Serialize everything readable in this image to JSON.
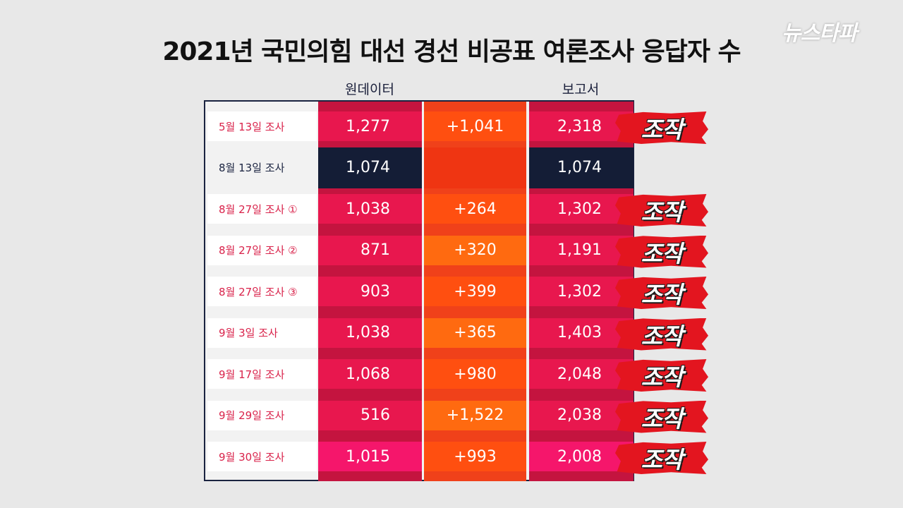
{
  "title": "2021년 국민의힘 대선 경선 비공표 여론조사 응답자 수",
  "logo": "뉴스타파",
  "columns": {
    "raw": "원데이터",
    "report": "보고서"
  },
  "badge_label": "조작",
  "colors": {
    "pink": "#e8174e",
    "orange": "#ff4f10",
    "navy": "#1a2340",
    "badge": "#e3151f"
  },
  "rows": [
    {
      "label": "5월 13일 조사",
      "raw": "1,277",
      "diff": "+1,041",
      "report": "2,318",
      "flag": true
    },
    {
      "label": "8월 13일 조사",
      "raw": "1,074",
      "diff": "",
      "report": "1,074",
      "flag": false
    },
    {
      "label": "8월 27일 조사 ①",
      "raw": "1,038",
      "diff": "+264",
      "report": "1,302",
      "flag": true
    },
    {
      "label": "8월 27일 조사 ②",
      "raw": "871",
      "diff": "+320",
      "report": "1,191",
      "flag": true
    },
    {
      "label": "8월 27일 조사 ③",
      "raw": "903",
      "diff": "+399",
      "report": "1,302",
      "flag": true
    },
    {
      "label": "9월   3일 조사",
      "raw": "1,038",
      "diff": "+365",
      "report": "1,403",
      "flag": true
    },
    {
      "label": "9월 17일 조사",
      "raw": "1,068",
      "diff": "+980",
      "report": "2,048",
      "flag": true
    },
    {
      "label": "9월 29일 조사",
      "raw": "516",
      "diff": "+1,522",
      "report": "2,038",
      "flag": true
    },
    {
      "label": "9월 30일 조사",
      "raw": "1,015",
      "diff": "+993",
      "report": "2,008",
      "flag": true
    }
  ]
}
